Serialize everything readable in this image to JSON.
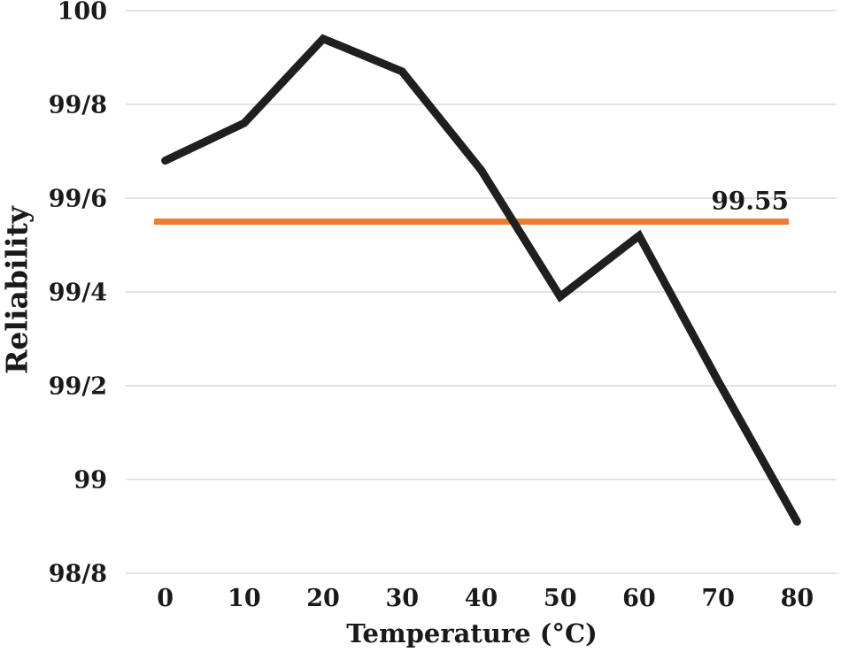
{
  "chart_data": {
    "type": "line",
    "title": "",
    "xlabel": "Temperature (°C)",
    "ylabel": "Reliability",
    "x": [
      0,
      10,
      20,
      30,
      40,
      50,
      60,
      70,
      80
    ],
    "x_tick_labels": [
      "0",
      "10",
      "20",
      "30",
      "40",
      "50",
      "60",
      "70",
      "80"
    ],
    "ylim": [
      98.8,
      100.0
    ],
    "grid": true,
    "legend": "none",
    "y_ticks": [
      {
        "value": 100.0,
        "label": "100"
      },
      {
        "value": 99.8,
        "label": "99/8"
      },
      {
        "value": 99.6,
        "label": "99/6"
      },
      {
        "value": 99.4,
        "label": "99/4"
      },
      {
        "value": 99.2,
        "label": "99/2"
      },
      {
        "value": 99.0,
        "label": "99"
      },
      {
        "value": 98.8,
        "label": "98/8"
      }
    ],
    "series": [
      {
        "name": "reliability",
        "type": "line",
        "color": "#1f1f1f",
        "values": [
          99.68,
          99.76,
          99.94,
          99.87,
          99.66,
          99.39,
          99.52,
          99.21,
          98.91
        ]
      },
      {
        "name": "threshold",
        "type": "hline",
        "color": "#ED7D31",
        "value": 99.55,
        "label": "99.55"
      }
    ]
  },
  "colors": {
    "line": "#1f1f1f",
    "threshold": "#ED7D31",
    "grid": "#d9d9d9",
    "text": "#1a1a1a"
  }
}
